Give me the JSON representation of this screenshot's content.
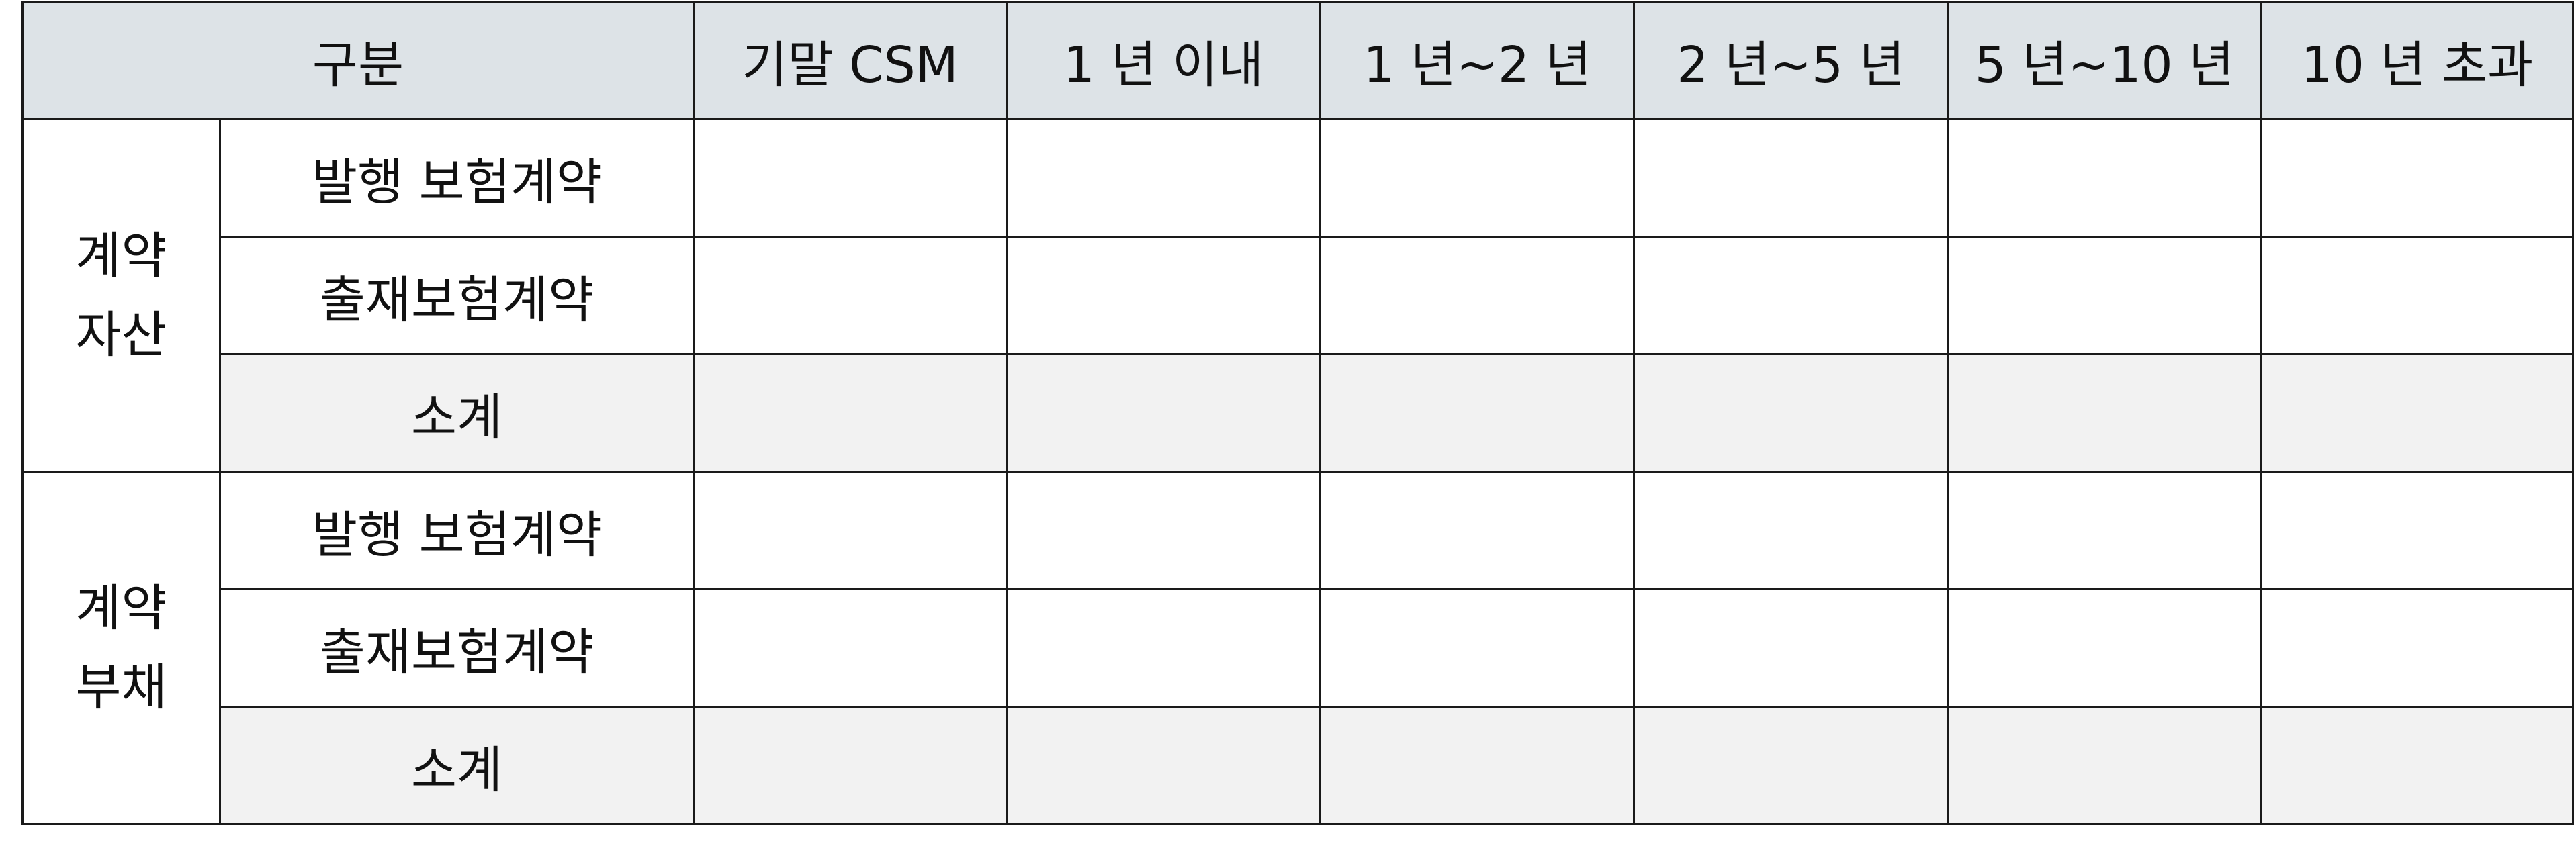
{
  "table": {
    "header": {
      "category": "구분",
      "columns": [
        "기말 CSM",
        "1 년 이내",
        "1 년~2 년",
        "2 년~5 년",
        "5 년~10 년",
        "10 년 초과"
      ]
    },
    "groups": [
      {
        "label_line1": "계약",
        "label_line2": "자산",
        "rows": [
          {
            "label": "발행 보험계약",
            "values": [
              "",
              "",
              "",
              "",
              "",
              ""
            ]
          },
          {
            "label": "출재보험계약",
            "values": [
              "",
              "",
              "",
              "",
              "",
              ""
            ]
          },
          {
            "label": "소계",
            "values": [
              "",
              "",
              "",
              "",
              "",
              ""
            ]
          }
        ]
      },
      {
        "label_line1": "계약",
        "label_line2": "부채",
        "rows": [
          {
            "label": "발행 보험계약",
            "values": [
              "",
              "",
              "",
              "",
              "",
              ""
            ]
          },
          {
            "label": "출재보험계약",
            "values": [
              "",
              "",
              "",
              "",
              "",
              ""
            ]
          },
          {
            "label": "소계",
            "values": [
              "",
              "",
              "",
              "",
              "",
              ""
            ]
          }
        ]
      }
    ]
  }
}
